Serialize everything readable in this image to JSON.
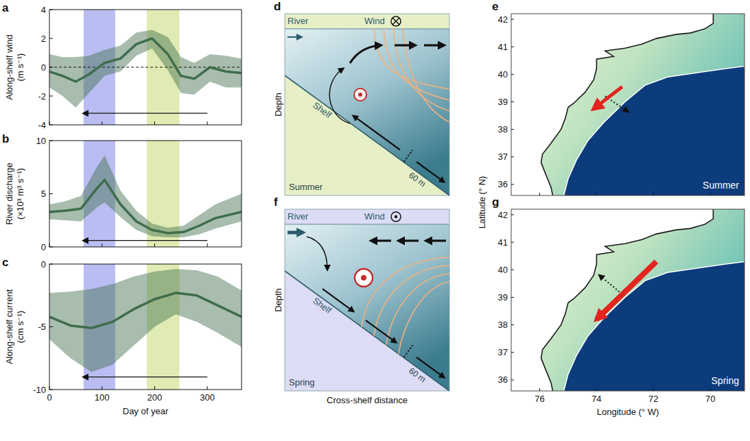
{
  "chart_data": [
    {
      "panel": "a",
      "type": "line",
      "ylabel": "Along-shelf wind (m s⁻¹)",
      "x": [
        0,
        25,
        50,
        75,
        105,
        135,
        165,
        195,
        225,
        250,
        275,
        305,
        335,
        365
      ],
      "values": [
        -0.3,
        -0.6,
        -1.0,
        -0.5,
        0.3,
        0.6,
        1.6,
        2.0,
        0.9,
        -0.6,
        -0.8,
        0.0,
        -0.3,
        -0.4
      ],
      "upper": [
        0.9,
        0.7,
        0.7,
        0.8,
        1.2,
        1.5,
        2.4,
        2.6,
        2.1,
        0.7,
        0.3,
        0.9,
        0.8,
        0.6
      ],
      "lower": [
        -1.4,
        -2.0,
        -2.8,
        -1.8,
        -0.6,
        -0.3,
        0.8,
        1.3,
        -0.2,
        -1.8,
        -1.9,
        -1.0,
        -1.4,
        -1.4
      ],
      "color": "#3f6d4c",
      "xlim": [
        0,
        365
      ],
      "ylim": [
        -4,
        4
      ],
      "xticks": [
        0,
        100,
        200,
        300
      ],
      "yticks": [
        -4,
        -2,
        0,
        2,
        4
      ],
      "tick_labels": "y",
      "hline": 0,
      "spans": [
        {
          "start": 65,
          "end": 125
        },
        {
          "start": 185,
          "end": 247
        }
      ],
      "arrow": {
        "from": 300,
        "to": 65,
        "y": -3.2
      }
    },
    {
      "panel": "b",
      "type": "line",
      "ylabel": "River discharge (×10³ m³ s⁻¹)",
      "x": [
        0,
        30,
        60,
        90,
        105,
        135,
        165,
        195,
        225,
        255,
        285,
        315,
        365
      ],
      "values": [
        3.3,
        3.4,
        3.6,
        5.5,
        6.3,
        4.0,
        2.4,
        1.6,
        1.3,
        1.4,
        2.0,
        2.7,
        3.3
      ],
      "upper": [
        4.0,
        4.3,
        4.8,
        7.5,
        8.6,
        5.3,
        3.4,
        2.2,
        1.8,
        2.0,
        3.0,
        4.0,
        5.0
      ],
      "lower": [
        2.6,
        2.5,
        2.4,
        3.7,
        4.2,
        2.8,
        1.6,
        1.0,
        0.9,
        0.9,
        1.2,
        1.7,
        2.4
      ],
      "color": "#3f6d4c",
      "xlim": [
        0,
        365
      ],
      "ylim": [
        0,
        10
      ],
      "xticks": [
        0,
        100,
        200,
        300
      ],
      "yticks": [
        0,
        5,
        10
      ],
      "tick_labels": "y",
      "spans": [
        {
          "start": 65,
          "end": 125
        },
        {
          "start": 185,
          "end": 247
        }
      ],
      "arrow": {
        "from": 300,
        "to": 65,
        "y": 0.6
      }
    },
    {
      "panel": "c",
      "type": "line",
      "ylabel": "Along-shelf current (cm s⁻¹)",
      "xlabel": "Day of year",
      "x": [
        0,
        40,
        80,
        120,
        160,
        200,
        240,
        280,
        320,
        365
      ],
      "values": [
        -4.2,
        -4.9,
        -5.1,
        -4.6,
        -3.6,
        -2.8,
        -2.3,
        -2.5,
        -3.3,
        -4.2
      ],
      "upper": [
        -2.3,
        -2.2,
        -2.0,
        -1.6,
        -1.0,
        -0.6,
        -0.4,
        -0.5,
        -1.0,
        -2.1
      ],
      "lower": [
        -6.0,
        -7.5,
        -8.6,
        -8.0,
        -6.5,
        -5.0,
        -4.0,
        -4.6,
        -5.5,
        -6.6
      ],
      "color": "#3f6d4c",
      "xlim": [
        0,
        365
      ],
      "ylim": [
        -10,
        0
      ],
      "xticks": [
        0,
        100,
        200,
        300
      ],
      "yticks": [
        -10,
        -5,
        0
      ],
      "spans": [
        {
          "start": 65,
          "end": 125
        },
        {
          "start": 185,
          "end": 247
        }
      ],
      "arrow": {
        "from": 300,
        "to": 65,
        "y": -9
      }
    },
    {
      "panel": "e",
      "type": "map",
      "ylabel": "Latitude (° N)",
      "annotation": "Summer",
      "xlim": [
        77,
        68.8
      ],
      "ylim": [
        35.6,
        42.2
      ],
      "xticks": [
        76,
        74,
        72,
        70
      ],
      "yticks": [
        36,
        37,
        38,
        39,
        40,
        41,
        42
      ],
      "tick_labels": "y"
    },
    {
      "panel": "g",
      "type": "map",
      "xlabel": "Longitude (° W)",
      "annotation": "Spring",
      "xlim": [
        77,
        68.8
      ],
      "ylim": [
        35.6,
        42.2
      ],
      "xticks": [
        76,
        74,
        72,
        70
      ],
      "yticks": [
        36,
        37,
        38,
        39,
        40,
        41,
        42
      ]
    }
  ],
  "diagrams": [
    {
      "panel": "d",
      "river": "River",
      "wind": "Wind",
      "depth": "Depth",
      "shelf": "Shelf",
      "isobath": "60 m",
      "season": "Summer"
    },
    {
      "panel": "f",
      "river": "River",
      "wind": "Wind",
      "depth": "Depth",
      "shelf": "Shelf",
      "isobath": "60 m",
      "season": "Spring",
      "xlabel": "Cross-shelf distance"
    }
  ]
}
